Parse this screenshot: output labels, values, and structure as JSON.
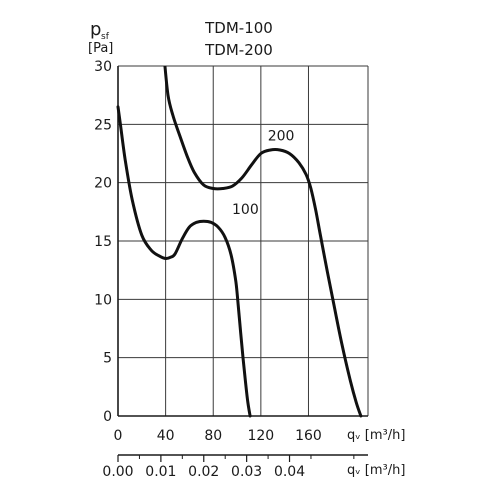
{
  "chart_data": {
    "type": "line",
    "title_lines": [
      "TDM-100",
      "TDM-200"
    ],
    "ylabel": {
      "main": "p",
      "sub": "sf",
      "unit": "[Pa]"
    },
    "xlabel_top": "qᵥ [m³/h]",
    "xlabel_bottom": "qᵥ [m³/h]",
    "ylim": [
      0,
      30
    ],
    "xlim": [
      0,
      210
    ],
    "xlim_secondary": [
      0,
      0.0583
    ],
    "yticks": [
      0,
      5,
      10,
      15,
      20,
      25,
      30
    ],
    "xticks": [
      0,
      40,
      80,
      120,
      160
    ],
    "xticks_secondary": [
      "0.00",
      "0.01",
      "0.02",
      "0.03",
      "0.04"
    ],
    "grid": true,
    "series": [
      {
        "name": "100",
        "x": [
          0,
          2,
          6,
          12,
          20,
          28,
          35,
          40,
          44,
          48,
          54,
          60,
          66,
          72,
          78,
          84,
          90,
          95,
          99,
          101,
          103,
          105,
          107,
          109,
          111
        ],
        "y": [
          26.5,
          25.0,
          22.0,
          18.5,
          15.5,
          14.2,
          13.7,
          13.5,
          13.6,
          13.9,
          15.2,
          16.2,
          16.6,
          16.7,
          16.6,
          16.2,
          15.3,
          13.8,
          11.5,
          9.5,
          7.2,
          5.0,
          3.0,
          1.2,
          0
        ]
      },
      {
        "name": "200",
        "x": [
          39,
          42,
          46,
          52,
          58,
          64,
          72,
          80,
          88,
          96,
          104,
          112,
          120,
          128,
          136,
          144,
          152,
          158,
          162,
          166,
          170,
          176,
          182,
          188,
          194,
          200,
          204
        ],
        "y": [
          30.5,
          27.5,
          25.8,
          24.0,
          22.3,
          20.9,
          19.8,
          19.5,
          19.5,
          19.7,
          20.4,
          21.5,
          22.5,
          22.8,
          22.8,
          22.5,
          21.7,
          20.7,
          19.5,
          17.7,
          15.5,
          12.3,
          9.2,
          6.2,
          3.5,
          1.2,
          0
        ]
      }
    ],
    "annotations": [
      {
        "text": "200",
        "x": 137,
        "y": 23.6
      },
      {
        "text": "100",
        "x": 107,
        "y": 17.3
      }
    ]
  }
}
